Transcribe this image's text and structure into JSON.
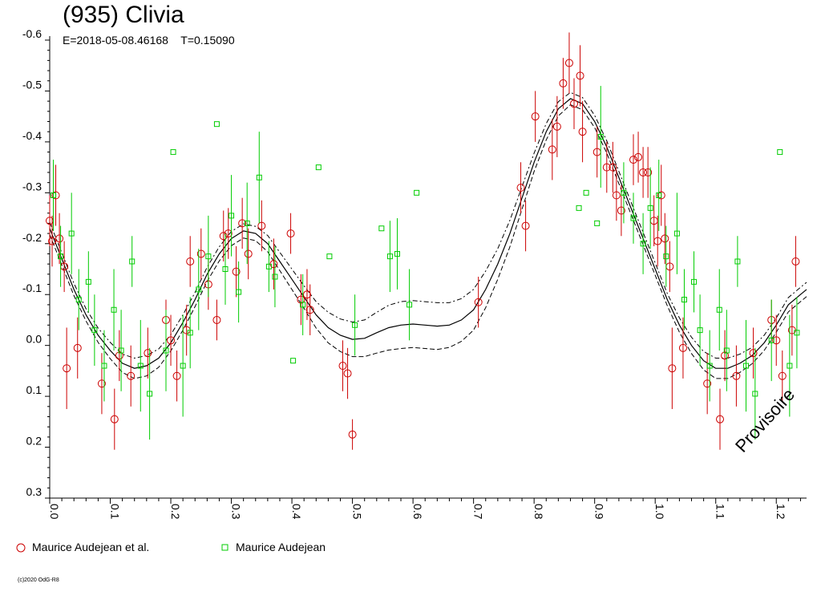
{
  "chart_data": {
    "type": "scatter",
    "title": "(935) Clivia",
    "subtitle_epoch": "E=2018-05-08.46168",
    "subtitle_period": "T=0.15090",
    "watermark": "Provisoire",
    "copyright": "(c)2020 OdG-R8",
    "y_reversed": true,
    "xlim": [
      0.0,
      1.25
    ],
    "ylim": [
      -0.6,
      0.3
    ],
    "x_ticks": [
      "0.0",
      "0.1",
      "0.2",
      "0.3",
      "0.4",
      "0.5",
      "0.6",
      "0.7",
      "0.8",
      "0.9",
      "1.0",
      "1.1",
      "1.2"
    ],
    "y_ticks": [
      "-0.6",
      "-0.5",
      "-0.4",
      "-0.3",
      "-0.2",
      "-0.1",
      "0.0",
      "0.1",
      "0.2",
      "0.3"
    ],
    "grid": false,
    "legend_position": "bottom",
    "colors": {
      "series1": "#cc0000",
      "series2": "#00cc00",
      "fit": "#000000"
    },
    "series": [
      {
        "name": "Maurice Audejean et al.",
        "marker": "circle",
        "color": "#cc0000",
        "points": [
          [
            0.0,
            -0.245,
            0.05
          ],
          [
            0.004,
            -0.205,
            0.05
          ],
          [
            0.01,
            -0.295,
            0.06
          ],
          [
            0.016,
            -0.21,
            0.05
          ],
          [
            0.024,
            -0.155,
            0.05
          ],
          [
            0.028,
            0.045,
            0.08
          ],
          [
            0.046,
            0.005,
            0.06
          ],
          [
            0.086,
            0.075,
            0.06
          ],
          [
            0.107,
            0.145,
            0.06
          ],
          [
            0.115,
            0.02,
            0.05
          ],
          [
            0.134,
            0.06,
            0.06
          ],
          [
            0.162,
            0.015,
            0.05
          ],
          [
            0.192,
            -0.05,
            0.04
          ],
          [
            0.2,
            -0.01,
            0.05
          ],
          [
            0.21,
            0.06,
            0.05
          ],
          [
            0.226,
            -0.03,
            0.05
          ],
          [
            0.232,
            -0.165,
            0.05
          ],
          [
            0.25,
            -0.18,
            0.05
          ],
          [
            0.262,
            -0.12,
            0.05
          ],
          [
            0.276,
            -0.05,
            0.04
          ],
          [
            0.287,
            -0.215,
            0.05
          ],
          [
            0.295,
            -0.22,
            0.05
          ],
          [
            0.308,
            -0.145,
            0.05
          ],
          [
            0.318,
            -0.24,
            0.05
          ],
          [
            0.328,
            -0.18,
            0.05
          ],
          [
            0.35,
            -0.235,
            0.05
          ],
          [
            0.37,
            -0.16,
            0.05
          ],
          [
            0.398,
            -0.22,
            0.04
          ],
          [
            0.415,
            -0.09,
            0.05
          ],
          [
            0.425,
            -0.1,
            0.05
          ],
          [
            0.43,
            -0.07,
            0.05
          ],
          [
            0.484,
            0.04,
            0.05
          ],
          [
            0.492,
            0.055,
            0.05
          ],
          [
            0.5,
            0.175,
            0.03
          ],
          [
            0.708,
            -0.085,
            0.05
          ],
          [
            0.778,
            -0.31,
            0.05
          ],
          [
            0.786,
            -0.235,
            0.05
          ],
          [
            0.802,
            -0.45,
            0.05
          ],
          [
            0.83,
            -0.385,
            0.06
          ],
          [
            0.838,
            -0.43,
            0.06
          ],
          [
            0.848,
            -0.515,
            0.05
          ],
          [
            0.858,
            -0.555,
            0.06
          ],
          [
            0.866,
            -0.475,
            0.05
          ],
          [
            0.876,
            -0.53,
            0.06
          ],
          [
            0.88,
            -0.42,
            0.06
          ],
          [
            0.904,
            -0.38,
            0.05
          ],
          [
            0.92,
            -0.35,
            0.05
          ],
          [
            0.93,
            -0.35,
            0.05
          ],
          [
            0.936,
            -0.295,
            0.05
          ],
          [
            0.944,
            -0.265,
            0.05
          ],
          [
            0.964,
            -0.365,
            0.05
          ],
          [
            0.972,
            -0.37,
            0.05
          ],
          [
            0.98,
            -0.34,
            0.05
          ],
          [
            0.988,
            -0.34,
            0.05
          ],
          [
            0.998,
            -0.245,
            0.05
          ],
          [
            1.004,
            -0.205,
            0.05
          ],
          [
            1.01,
            -0.295,
            0.06
          ],
          [
            1.016,
            -0.21,
            0.05
          ],
          [
            1.024,
            -0.155,
            0.05
          ],
          [
            1.028,
            0.045,
            0.08
          ],
          [
            1.046,
            0.005,
            0.06
          ],
          [
            1.086,
            0.075,
            0.06
          ],
          [
            1.107,
            0.145,
            0.06
          ],
          [
            1.115,
            0.02,
            0.05
          ],
          [
            1.134,
            0.06,
            0.06
          ],
          [
            1.162,
            0.015,
            0.05
          ],
          [
            1.192,
            -0.05,
            0.04
          ],
          [
            1.2,
            -0.01,
            0.05
          ],
          [
            1.21,
            0.06,
            0.05
          ],
          [
            1.226,
            -0.03,
            0.05
          ],
          [
            1.232,
            -0.165,
            0.05
          ]
        ]
      },
      {
        "name": "Maurice Audejean",
        "marker": "square",
        "color": "#00cc00",
        "points": [
          [
            0.006,
            -0.295,
            0.07
          ],
          [
            0.018,
            -0.175,
            0.06
          ],
          [
            0.036,
            -0.22,
            0.08
          ],
          [
            0.048,
            -0.09,
            0.06
          ],
          [
            0.064,
            -0.125,
            0.06
          ],
          [
            0.074,
            -0.03,
            0.07
          ],
          [
            0.09,
            0.04,
            0.07
          ],
          [
            0.106,
            -0.07,
            0.08
          ],
          [
            0.118,
            0.01,
            0.08
          ],
          [
            0.136,
            -0.165,
            0.05
          ],
          [
            0.15,
            0.04,
            0.09
          ],
          [
            0.165,
            0.095,
            0.09
          ],
          [
            0.192,
            0.01,
            0.08
          ],
          [
            0.204,
            -0.38,
            0.0
          ],
          [
            0.22,
            0.04,
            0.1
          ],
          [
            0.232,
            -0.025,
            0.07
          ],
          [
            0.246,
            -0.11,
            0.08
          ],
          [
            0.262,
            -0.175,
            0.08
          ],
          [
            0.276,
            -0.435,
            0.0
          ],
          [
            0.29,
            -0.15,
            0.07
          ],
          [
            0.3,
            -0.255,
            0.08
          ],
          [
            0.312,
            -0.105,
            0.06
          ],
          [
            0.326,
            -0.24,
            0.08
          ],
          [
            0.346,
            -0.33,
            0.09
          ],
          [
            0.362,
            -0.155,
            0.05
          ],
          [
            0.372,
            -0.135,
            0.06
          ],
          [
            0.402,
            0.03,
            0.0
          ],
          [
            0.418,
            -0.08,
            0.06
          ],
          [
            0.444,
            -0.35,
            0.0
          ],
          [
            0.462,
            -0.175,
            0.0
          ],
          [
            0.504,
            -0.04,
            0.06
          ],
          [
            0.548,
            -0.23,
            0.0
          ],
          [
            0.562,
            -0.175,
            0.07
          ],
          [
            0.574,
            -0.18,
            0.07
          ],
          [
            0.594,
            -0.08,
            0.07
          ],
          [
            0.606,
            -0.3,
            0.0
          ],
          [
            0.874,
            -0.27,
            0.0
          ],
          [
            0.886,
            -0.3,
            0.0
          ],
          [
            0.904,
            -0.24,
            0.0
          ],
          [
            0.91,
            -0.41,
            0.1
          ],
          [
            0.948,
            -0.3,
            0.06
          ],
          [
            0.964,
            -0.25,
            0.05
          ],
          [
            0.98,
            -0.2,
            0.06
          ],
          [
            0.992,
            -0.27,
            0.08
          ],
          [
            1.006,
            -0.295,
            0.07
          ],
          [
            1.018,
            -0.175,
            0.06
          ],
          [
            1.036,
            -0.22,
            0.08
          ],
          [
            1.048,
            -0.09,
            0.06
          ],
          [
            1.064,
            -0.125,
            0.06
          ],
          [
            1.074,
            -0.03,
            0.07
          ],
          [
            1.09,
            0.04,
            0.07
          ],
          [
            1.106,
            -0.07,
            0.08
          ],
          [
            1.118,
            0.01,
            0.08
          ],
          [
            1.136,
            -0.165,
            0.05
          ],
          [
            1.15,
            0.04,
            0.09
          ],
          [
            1.165,
            0.095,
            0.09
          ],
          [
            1.192,
            -0.01,
            0.08
          ],
          [
            1.206,
            -0.38,
            0.0
          ],
          [
            1.222,
            0.04,
            0.1
          ],
          [
            1.234,
            -0.025,
            0.07
          ]
        ]
      }
    ],
    "fit_curve": {
      "x": [
        0.0,
        0.02,
        0.04,
        0.06,
        0.08,
        0.1,
        0.12,
        0.14,
        0.16,
        0.18,
        0.2,
        0.22,
        0.24,
        0.26,
        0.28,
        0.3,
        0.32,
        0.34,
        0.36,
        0.38,
        0.4,
        0.42,
        0.44,
        0.46,
        0.48,
        0.5,
        0.52,
        0.54,
        0.56,
        0.58,
        0.6,
        0.62,
        0.64,
        0.66,
        0.68,
        0.7,
        0.72,
        0.74,
        0.76,
        0.78,
        0.8,
        0.82,
        0.84,
        0.86,
        0.88,
        0.9,
        0.92,
        0.94,
        0.96,
        0.98,
        1.0,
        1.02,
        1.04,
        1.06,
        1.08,
        1.1,
        1.12,
        1.14,
        1.16,
        1.18,
        1.2,
        1.22,
        1.24,
        1.25
      ],
      "y": [
        -0.23,
        -0.17,
        -0.11,
        -0.06,
        -0.02,
        0.01,
        0.035,
        0.045,
        0.04,
        0.025,
        -0.005,
        -0.045,
        -0.09,
        -0.14,
        -0.18,
        -0.21,
        -0.225,
        -0.22,
        -0.2,
        -0.165,
        -0.13,
        -0.095,
        -0.06,
        -0.035,
        -0.02,
        -0.012,
        -0.014,
        -0.025,
        -0.035,
        -0.04,
        -0.042,
        -0.04,
        -0.038,
        -0.04,
        -0.05,
        -0.07,
        -0.11,
        -0.16,
        -0.22,
        -0.29,
        -0.36,
        -0.42,
        -0.465,
        -0.485,
        -0.475,
        -0.44,
        -0.39,
        -0.33,
        -0.27,
        -0.21,
        -0.15,
        -0.09,
        -0.04,
        0.0,
        0.03,
        0.045,
        0.045,
        0.035,
        0.02,
        -0.005,
        -0.04,
        -0.08,
        -0.1,
        -0.11
      ],
      "band": [
        0.012,
        0.012,
        0.012,
        0.012,
        0.014,
        0.016,
        0.018,
        0.02,
        0.02,
        0.018,
        0.016,
        0.015,
        0.014,
        0.014,
        0.014,
        0.014,
        0.014,
        0.014,
        0.016,
        0.018,
        0.02,
        0.022,
        0.026,
        0.03,
        0.032,
        0.034,
        0.036,
        0.04,
        0.044,
        0.046,
        0.046,
        0.046,
        0.046,
        0.044,
        0.042,
        0.04,
        0.036,
        0.03,
        0.026,
        0.022,
        0.018,
        0.016,
        0.014,
        0.012,
        0.012,
        0.012,
        0.012,
        0.012,
        0.012,
        0.012,
        0.012,
        0.012,
        0.014,
        0.016,
        0.018,
        0.02,
        0.02,
        0.018,
        0.016,
        0.015,
        0.014,
        0.014,
        0.014,
        0.014
      ]
    }
  }
}
